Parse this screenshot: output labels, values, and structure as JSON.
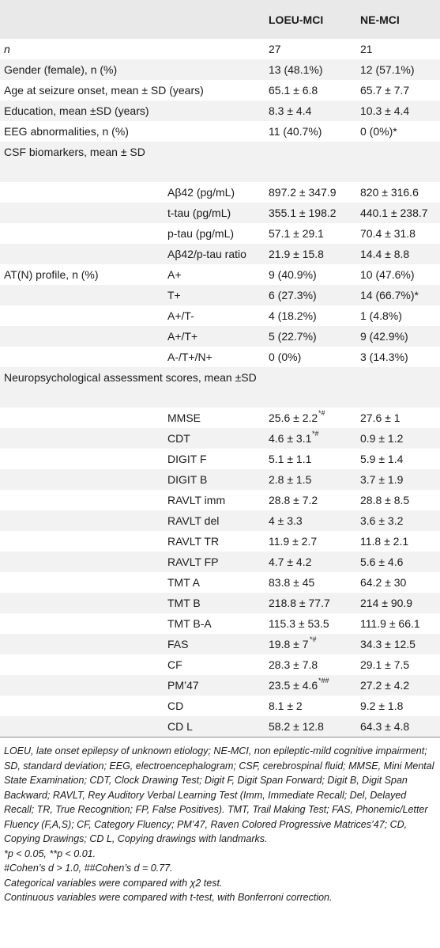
{
  "header": {
    "col_group1": "LOEU-MCI",
    "col_group2": "NE-MCI"
  },
  "rows": [
    {
      "label": "n",
      "sub": "",
      "g1": "27",
      "g2": "21",
      "italic_label": true
    },
    {
      "label": "Gender (female), n (%)",
      "sub": "",
      "g1": "13 (48.1%)",
      "g2": "12 (57.1%)"
    },
    {
      "label": "Age at seizure onset, mean ± SD (years)",
      "sub": "",
      "g1": "65.1 ± 6.8",
      "g2": "65.7 ± 7.7"
    },
    {
      "label": "Education, mean ±SD (years)",
      "sub": "",
      "g1": "8.3 ± 4.4",
      "g2": "10.3 ± 4.4"
    },
    {
      "label": "EEG abnormalities, n (%)",
      "sub": "",
      "g1": "11 (40.7%)",
      "g2": "0 (0%)*"
    },
    {
      "label": "CSF biomarkers, mean ± SD",
      "sub": "",
      "g1": "",
      "g2": "",
      "tall": true
    },
    {
      "label": "",
      "sub": "Aβ42 (pg/mL)",
      "g1": "897.2 ± 347.9",
      "g2": "820 ± 316.6"
    },
    {
      "label": "",
      "sub": "t-tau (pg/mL)",
      "g1": "355.1 ± 198.2",
      "g2": "440.1 ± 238.7"
    },
    {
      "label": "",
      "sub": "p-tau (pg/mL)",
      "g1": "57.1 ± 29.1",
      "g2": "70.4 ± 31.8"
    },
    {
      "label": "",
      "sub": "Aβ42/p-tau ratio",
      "g1": "21.9 ± 15.8",
      "g2": "14.4 ± 8.8"
    },
    {
      "label": "AT(N) profile, n (%)",
      "sub": "A+",
      "g1": "9 (40.9%)",
      "g2": "10 (47.6%)"
    },
    {
      "label": "",
      "sub": "T+",
      "g1": "6 (27.3%)",
      "g2": "14 (66.7%)*"
    },
    {
      "label": "",
      "sub": "A+/T-",
      "g1": "4 (18.2%)",
      "g2": "1 (4.8%)"
    },
    {
      "label": "",
      "sub": "A+/T+",
      "g1": "5 (22.7%)",
      "g2": "9 (42.9%)"
    },
    {
      "label": "",
      "sub": "A-/T+/N+",
      "g1": "0 (0%)",
      "g2": "3 (14.3%)"
    },
    {
      "label": "Neuropsychological assessment scores, mean ±SD",
      "sub": "",
      "g1": "",
      "g2": "",
      "tall": true
    },
    {
      "label": "",
      "sub": "MMSE",
      "g1": "25.6 ± 2.2",
      "g1_sup": "*#",
      "g2": "27.6 ± 1"
    },
    {
      "label": "",
      "sub": "CDT",
      "g1": "4.6 ± 3.1",
      "g1_sup": "*#",
      "g2": "0.9 ± 1.2"
    },
    {
      "label": "",
      "sub": "DIGIT F",
      "g1": "5.1 ± 1.1",
      "g2": "5.9 ± 1.4"
    },
    {
      "label": "",
      "sub": "DIGIT B",
      "g1": "2.8 ± 1.5",
      "g2": "3.7 ± 1.9"
    },
    {
      "label": "",
      "sub": "RAVLT imm",
      "g1": "28.8 ± 7.2",
      "g2": "28.8 ± 8.5"
    },
    {
      "label": "",
      "sub": "RAVLT del",
      "g1": "4 ± 3.3",
      "g2": "3.6 ± 3.2"
    },
    {
      "label": "",
      "sub": "RAVLT TR",
      "g1": "11.9 ± 2.7",
      "g2": "11.8 ± 2.1"
    },
    {
      "label": "",
      "sub": "RAVLT FP",
      "g1": "4.7 ± 4.2",
      "g2": "5.6 ± 4.6"
    },
    {
      "label": "",
      "sub": "TMT A",
      "g1": "83.8 ± 45",
      "g2": "64.2 ± 30"
    },
    {
      "label": "",
      "sub": "TMT B",
      "g1": "218.8 ± 77.7",
      "g2": "214 ± 90.9"
    },
    {
      "label": "",
      "sub": "TMT B-A",
      "g1": "115.3 ± 53.5",
      "g2": "111.9 ± 66.1"
    },
    {
      "label": "",
      "sub": "FAS",
      "g1": "19.8 ± 7",
      "g1_sup": "*#",
      "g2": "34.3 ± 12.5"
    },
    {
      "label": "",
      "sub": "CF",
      "g1": "28.3 ± 7.8",
      "g2": "29.1 ± 7.5"
    },
    {
      "label": "",
      "sub": "PM’47",
      "g1": "23.5 ± 4.6",
      "g1_sup": "*##",
      "g2": "27.2 ± 4.2"
    },
    {
      "label": "",
      "sub": "CD",
      "g1": "8.1 ± 2",
      "g2": "9.2 ± 1.8"
    },
    {
      "label": "",
      "sub": "CD L",
      "g1": "58.2 ± 12.8",
      "g2": "64.3 ± 4.8"
    }
  ],
  "footnotes": {
    "abbreviations": "LOEU, late onset epilepsy of unknown etiology; NE-MCI, non epileptic-mild cognitive impairment; SD, standard deviation; EEG, electroencephalogram; CSF, cerebrospinal fluid; MMSE, Mini Mental State Examination; CDT, Clock Drawing Test; Digit F, Digit Span Forward; Digit B, Digit Span Backward; RAVLT, Rey Auditory Verbal Learning Test (Imm, Immediate Recall; Del, Delayed Recall; TR, True Recognition; FP, False Positives). TMT, Trail Making Test; FAS, Phonemic/Letter Fluency (F,A,S); CF, Category Fluency; PM’47, Raven Colored Progressive Matrices’47; CD, Copying Drawings; CD L, Copying drawings with landmarks.",
    "pvalues": "*p < 0.05, **p < 0.01.",
    "cohens": "#Cohen’s d > 1.0, ##Cohen’s d = 0.77.",
    "categorical": "Categorical variables were compared with χ2 test.",
    "continuous": "Continuous variables were compared with t-test, with Bonferroni correction."
  }
}
